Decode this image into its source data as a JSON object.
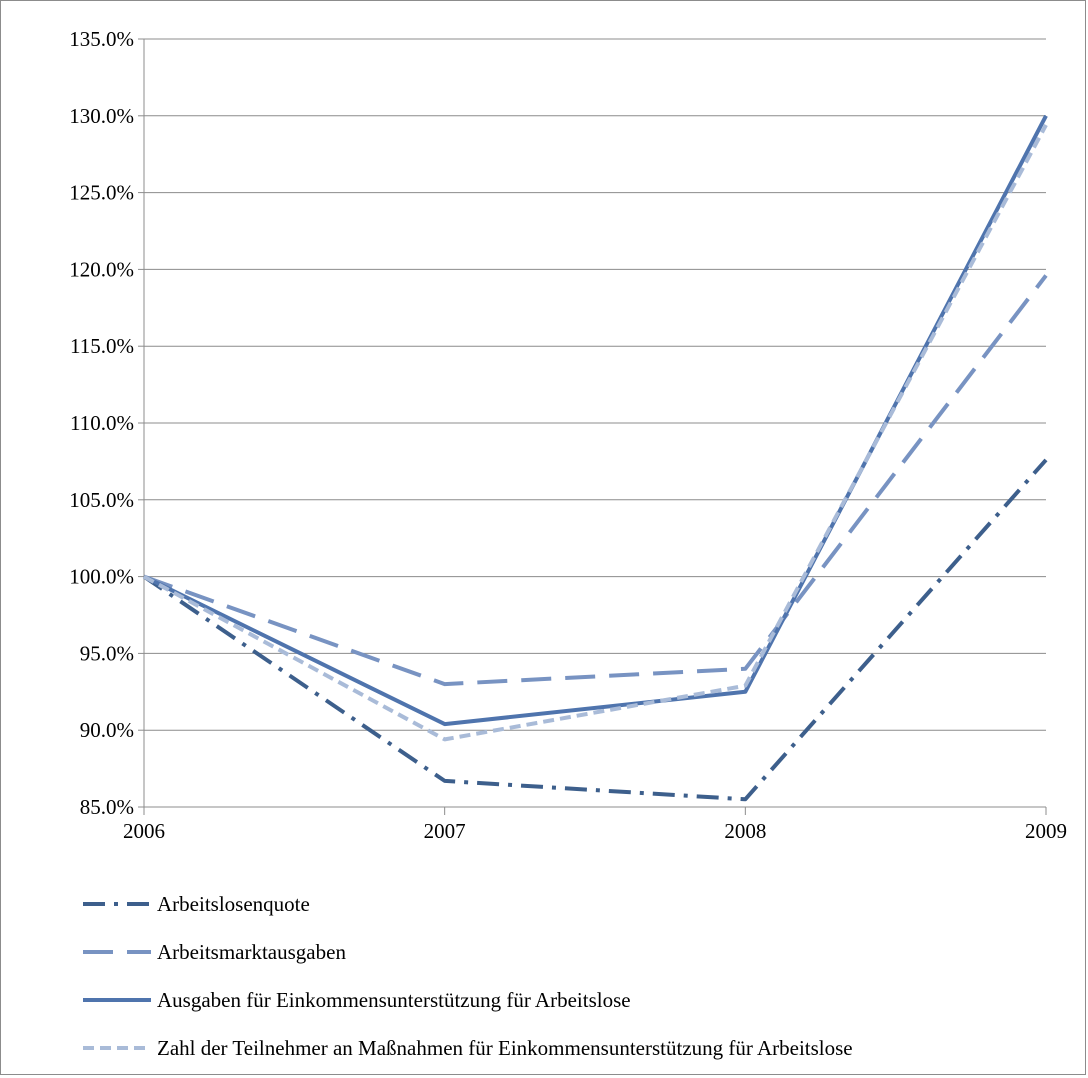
{
  "chart_data": {
    "type": "line",
    "x": [
      "2006",
      "2007",
      "2008",
      "2009"
    ],
    "ylim": [
      85.0,
      135.0
    ],
    "y_ticks": [
      85.0,
      90.0,
      95.0,
      100.0,
      105.0,
      110.0,
      115.0,
      120.0,
      125.0,
      130.0,
      135.0
    ],
    "y_tick_labels": [
      "85.0%",
      "90.0%",
      "95.0%",
      "100.0%",
      "105.0%",
      "110.0%",
      "115.0%",
      "120.0%",
      "125.0%",
      "130.0%",
      "135.0%"
    ],
    "grid": "horizontal",
    "legend_position": "bottom",
    "series": [
      {
        "name": "Arbeitslosenquote",
        "values": [
          100.0,
          86.7,
          85.5,
          107.6
        ],
        "color": "#3d5f8c",
        "dash": "dash-dot"
      },
      {
        "name": "Arbeitsmarktausgaben",
        "values": [
          100.0,
          93.0,
          94.0,
          119.6
        ],
        "color": "#7893c2",
        "dash": "long-dash"
      },
      {
        "name": "Ausgaben für Einkommensunterstützung für Arbeitslose",
        "values": [
          100.0,
          90.4,
          92.5,
          130.0
        ],
        "color": "#4f74ad",
        "dash": "solid"
      },
      {
        "name": "Zahl der Teilnehmer an Maßnahmen für Einkommensunterstützung für Arbeitslose",
        "values": [
          100.0,
          89.4,
          92.9,
          129.4
        ],
        "color": "#a9bbd8",
        "dash": "short-dash"
      }
    ]
  }
}
